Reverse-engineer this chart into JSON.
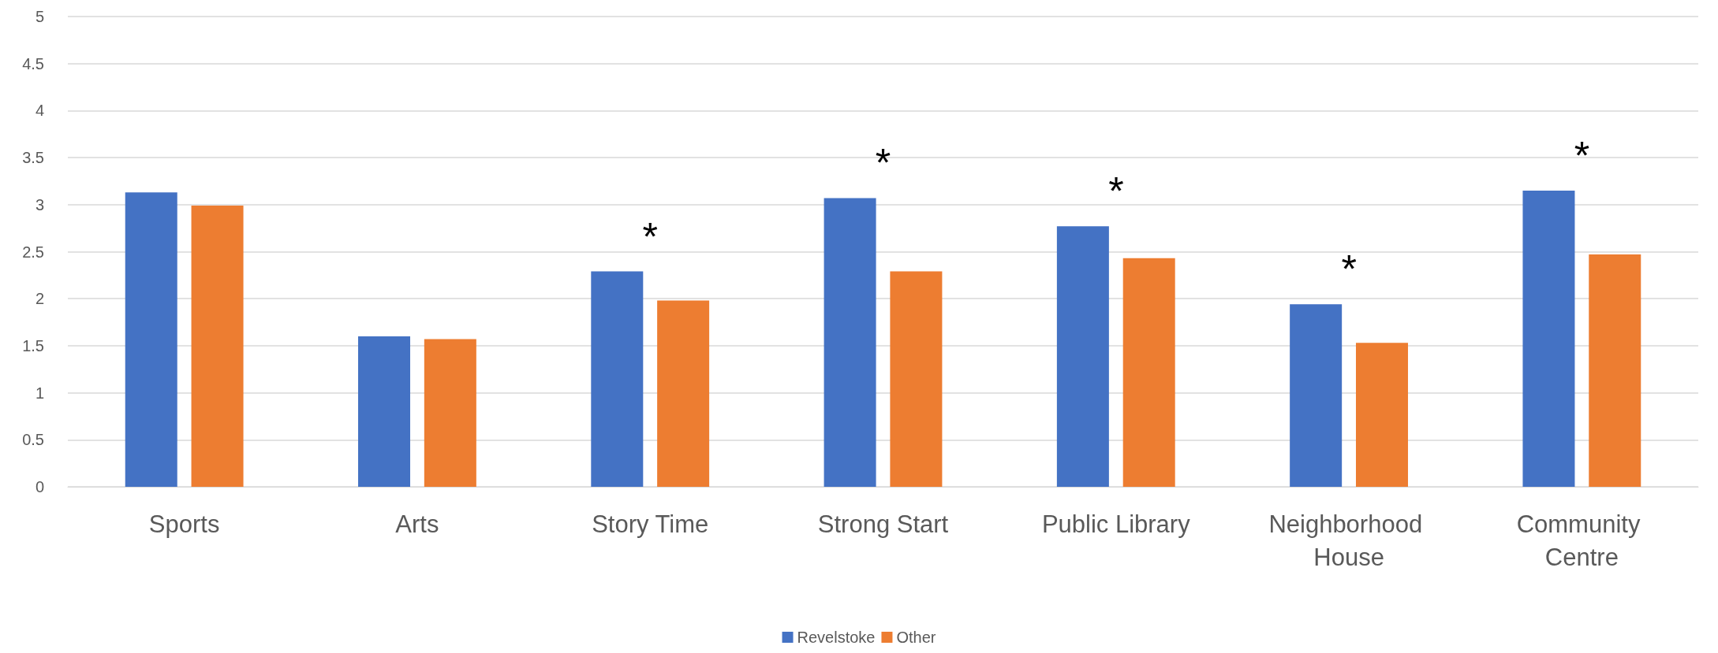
{
  "chart_data": {
    "type": "bar",
    "categories": [
      "Sports",
      "Arts",
      "Story Time",
      "Strong Start",
      "Public Library",
      "Neighborhood House",
      "Community Centre"
    ],
    "series": [
      {
        "name": "Revelstoke",
        "color": "#4472c4",
        "values": [
          3.13,
          1.6,
          2.29,
          3.07,
          2.77,
          1.94,
          3.15
        ],
        "value_labels": [
          null,
          null,
          "*",
          "*",
          "*",
          "*",
          "*"
        ]
      },
      {
        "name": "Other",
        "color": "#ed7d31",
        "values": [
          2.99,
          1.57,
          1.98,
          2.29,
          2.43,
          1.53,
          2.47
        ]
      }
    ],
    "ylim": [
      0,
      5
    ],
    "yticks": [
      0,
      0.5,
      1,
      1.5,
      2,
      2.5,
      3,
      3.5,
      4,
      4.5,
      5
    ],
    "grid": "y",
    "legend": "bottom"
  }
}
